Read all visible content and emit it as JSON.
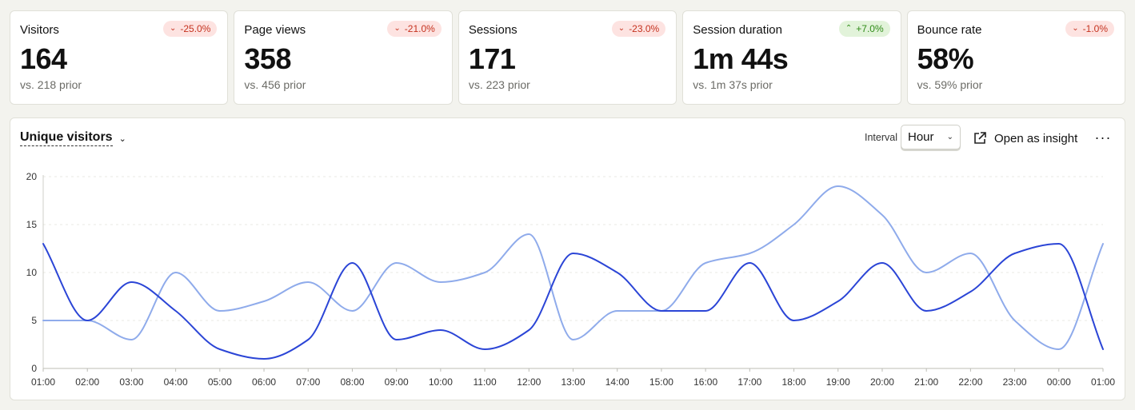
{
  "stats": [
    {
      "label": "Visitors",
      "value": "164",
      "prior": "vs. 218 prior",
      "change": "-25.0%",
      "direction": "down"
    },
    {
      "label": "Page views",
      "value": "358",
      "prior": "vs. 456 prior",
      "change": "-21.0%",
      "direction": "down"
    },
    {
      "label": "Sessions",
      "value": "171",
      "prior": "vs. 223 prior",
      "change": "-23.0%",
      "direction": "down"
    },
    {
      "label": "Session duration",
      "value": "1m 44s",
      "prior": "vs. 1m 37s prior",
      "change": "+7.0%",
      "direction": "up"
    },
    {
      "label": "Bounce rate",
      "value": "58%",
      "prior": "vs. 59% prior",
      "change": "-1.0%",
      "direction": "up"
    }
  ],
  "chart_header": {
    "title": "Unique visitors",
    "interval_label": "Interval",
    "interval_value": "Hour",
    "open_insight": "Open as insight",
    "more": "···"
  },
  "icons": {
    "badge_down": "chevron-down-icon",
    "badge_up": "chevron-up-icon",
    "open_insight": "external-link-icon",
    "more": "more-horizontal-icon"
  },
  "colors": {
    "current": "#2b45d6",
    "previous": "#8fabeb",
    "badge_down_bg": "#fde3e1",
    "badge_down_text": "#c5321f",
    "badge_up_bg": "#e2f3da",
    "badge_up_text": "#2f8b17"
  },
  "chart_data": {
    "type": "line",
    "x": [
      "01:00",
      "02:00",
      "03:00",
      "04:00",
      "05:00",
      "06:00",
      "07:00",
      "08:00",
      "09:00",
      "10:00",
      "11:00",
      "12:00",
      "13:00",
      "14:00",
      "15:00",
      "16:00",
      "17:00",
      "18:00",
      "19:00",
      "20:00",
      "21:00",
      "22:00",
      "23:00",
      "00:00",
      "01:00"
    ],
    "yticks": [
      0,
      5,
      10,
      15,
      20
    ],
    "ylim": [
      0,
      20
    ],
    "grid": true,
    "series": [
      {
        "role": "current",
        "values": [
          13,
          5,
          9,
          6,
          2,
          1,
          3,
          11,
          3,
          4,
          2,
          4,
          12,
          10,
          6,
          6,
          11,
          5,
          7,
          11,
          6,
          8,
          12,
          13,
          2
        ]
      },
      {
        "role": "previous",
        "values": [
          5,
          5,
          3,
          10,
          6,
          7,
          9,
          6,
          11,
          9,
          10,
          14,
          3,
          6,
          6,
          11,
          12,
          15,
          19,
          16,
          10,
          12,
          5,
          2,
          13
        ]
      }
    ]
  }
}
